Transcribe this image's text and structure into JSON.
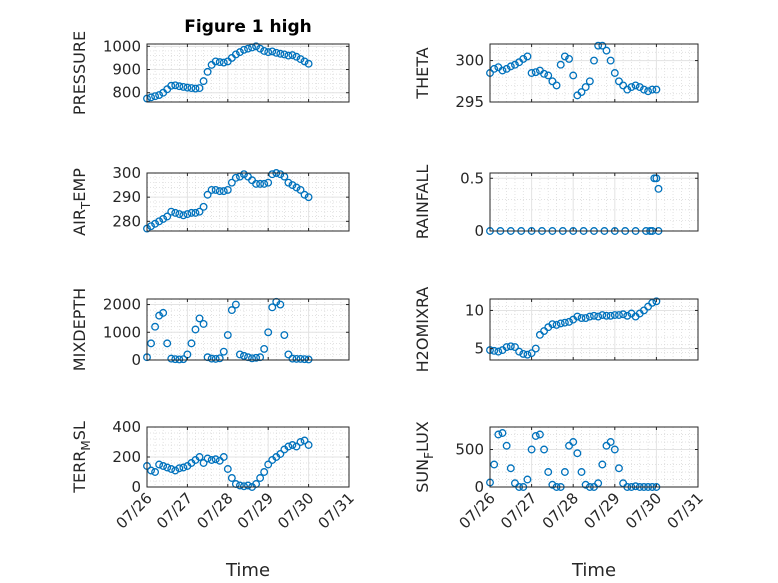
{
  "figure": {
    "title": "Figure 1 high",
    "xlabel": "Time"
  },
  "chart_data": [
    {
      "type": "scatter",
      "id": "pressure",
      "title": "Figure 1 high",
      "ylabel": "PRESSURE",
      "xlabel": "",
      "ylim": [
        760,
        1010
      ],
      "yticks": [
        800,
        900,
        1000
      ],
      "xlim": [
        0,
        5
      ],
      "xticks": [
        "07/26",
        "07/27",
        "07/28",
        "07/29",
        "07/30",
        "07/31"
      ],
      "show_xticklabels": false,
      "grid": true,
      "color": "#0072BD",
      "series": [
        {
          "x": [
            0,
            0.1,
            0.2,
            0.3,
            0.4,
            0.5,
            0.6,
            0.7,
            0.8,
            0.9,
            1,
            1.1,
            1.2,
            1.3,
            1.4,
            1.5,
            1.6,
            1.7,
            1.8,
            1.9,
            2,
            2.1,
            2.2,
            2.3,
            2.4,
            2.5,
            2.6,
            2.7,
            2.8,
            2.9,
            3,
            3.1,
            3.2,
            3.3,
            3.4,
            3.5,
            3.6,
            3.7,
            3.8,
            3.9,
            4
          ],
          "y": [
            775,
            780,
            785,
            790,
            800,
            815,
            830,
            832,
            828,
            825,
            822,
            820,
            818,
            820,
            850,
            890,
            920,
            935,
            932,
            930,
            935,
            950,
            965,
            975,
            985,
            990,
            995,
            1000,
            990,
            980,
            975,
            978,
            972,
            968,
            965,
            960,
            962,
            955,
            945,
            935,
            925
          ]
        }
      ]
    },
    {
      "type": "scatter",
      "id": "theta",
      "ylabel": "THETA",
      "xlabel": "",
      "ylim": [
        295,
        302
      ],
      "yticks": [
        295,
        300
      ],
      "xlim": [
        0,
        5
      ],
      "xticks": [
        "07/26",
        "07/27",
        "07/28",
        "07/29",
        "07/30",
        "07/31"
      ],
      "show_xticklabels": false,
      "grid": true,
      "color": "#0072BD",
      "series": [
        {
          "x": [
            0,
            0.1,
            0.2,
            0.3,
            0.4,
            0.5,
            0.6,
            0.7,
            0.8,
            0.9,
            1,
            1.1,
            1.2,
            1.3,
            1.4,
            1.5,
            1.6,
            1.7,
            1.8,
            1.9,
            2,
            2.1,
            2.2,
            2.3,
            2.4,
            2.5,
            2.6,
            2.7,
            2.8,
            2.9,
            3,
            3.1,
            3.2,
            3.3,
            3.4,
            3.5,
            3.6,
            3.7,
            3.8,
            3.9,
            4
          ],
          "y": [
            298.5,
            299,
            299.2,
            298.8,
            299,
            299.3,
            299.5,
            299.8,
            300.2,
            300.5,
            298.5,
            298.6,
            298.8,
            298.4,
            298.2,
            297.5,
            297,
            299.5,
            300.5,
            300.2,
            298.2,
            295.8,
            296.2,
            296.8,
            297.5,
            300,
            301.8,
            301.8,
            301.2,
            300,
            298.5,
            297.5,
            297,
            296.5,
            296.8,
            297,
            296.8,
            296.5,
            296.3,
            296.5,
            296.5
          ]
        }
      ]
    },
    {
      "type": "scatter",
      "id": "air_temp",
      "ylabel": "AIR_TEMP",
      "xlabel": "",
      "ylim": [
        276,
        300
      ],
      "yticks": [
        280,
        290,
        300
      ],
      "xlim": [
        0,
        5
      ],
      "xticks": [
        "07/26",
        "07/27",
        "07/28",
        "07/29",
        "07/30",
        "07/31"
      ],
      "show_xticklabels": false,
      "grid": true,
      "color": "#0072BD",
      "series": [
        {
          "x": [
            0,
            0.1,
            0.2,
            0.3,
            0.4,
            0.5,
            0.6,
            0.7,
            0.8,
            0.9,
            1,
            1.1,
            1.2,
            1.3,
            1.4,
            1.5,
            1.6,
            1.7,
            1.8,
            1.9,
            2,
            2.1,
            2.2,
            2.3,
            2.4,
            2.5,
            2.6,
            2.7,
            2.8,
            2.9,
            3,
            3.1,
            3.2,
            3.3,
            3.4,
            3.5,
            3.6,
            3.7,
            3.8,
            3.9,
            4
          ],
          "y": [
            277,
            278,
            279,
            280,
            281,
            282,
            284,
            283.5,
            283,
            282.5,
            283,
            283.5,
            283.5,
            284,
            286,
            291,
            293,
            293,
            292.5,
            292.5,
            293,
            296,
            298,
            298.5,
            299.5,
            298.5,
            297,
            295.5,
            295.5,
            295.5,
            296,
            299.5,
            300,
            299.5,
            298.5,
            296,
            295,
            294,
            293,
            291,
            290
          ]
        }
      ]
    },
    {
      "type": "scatter",
      "id": "rainfall",
      "ylabel": "RAINFALL",
      "xlabel": "",
      "ylim": [
        0,
        0.55
      ],
      "yticks": [
        0,
        0.5
      ],
      "xlim": [
        0,
        5
      ],
      "xticks": [
        "07/26",
        "07/27",
        "07/28",
        "07/29",
        "07/30",
        "07/31"
      ],
      "show_xticklabels": false,
      "grid": true,
      "color": "#0072BD",
      "series": [
        {
          "x": [
            0,
            0.25,
            0.5,
            0.75,
            1,
            1.25,
            1.5,
            1.75,
            2,
            2.25,
            2.5,
            2.75,
            3,
            3.25,
            3.5,
            3.75,
            3.85,
            3.9,
            3.95,
            4.0,
            4.05,
            4.05
          ],
          "y": [
            0,
            0,
            0,
            0,
            0,
            0,
            0,
            0,
            0,
            0,
            0,
            0,
            0,
            0,
            0,
            0,
            0,
            0,
            0.5,
            0.5,
            0.4,
            0
          ]
        }
      ]
    },
    {
      "type": "scatter",
      "id": "mixdepth",
      "ylabel": "MIXDEPTH",
      "xlabel": "",
      "ylim": [
        0,
        2200
      ],
      "yticks": [
        0,
        1000,
        2000
      ],
      "xlim": [
        0,
        5
      ],
      "xticks": [
        "07/26",
        "07/27",
        "07/28",
        "07/29",
        "07/30",
        "07/31"
      ],
      "show_xticklabels": false,
      "grid": true,
      "color": "#0072BD",
      "series": [
        {
          "x": [
            0,
            0.1,
            0.2,
            0.3,
            0.4,
            0.5,
            0.6,
            0.7,
            0.8,
            0.9,
            1,
            1.1,
            1.2,
            1.3,
            1.4,
            1.5,
            1.6,
            1.7,
            1.8,
            1.9,
            2,
            2.1,
            2.2,
            2.3,
            2.4,
            2.5,
            2.6,
            2.7,
            2.8,
            2.9,
            3,
            3.1,
            3.2,
            3.3,
            3.4,
            3.5,
            3.6,
            3.7,
            3.8,
            3.9,
            4
          ],
          "y": [
            100,
            600,
            1200,
            1600,
            1700,
            600,
            50,
            30,
            20,
            30,
            200,
            600,
            1100,
            1500,
            1300,
            100,
            50,
            40,
            60,
            300,
            900,
            1800,
            2000,
            200,
            150,
            100,
            60,
            80,
            100,
            400,
            1000,
            1900,
            2100,
            2000,
            900,
            200,
            50,
            40,
            40,
            30,
            20
          ]
        }
      ]
    },
    {
      "type": "scatter",
      "id": "h2omixra",
      "ylabel": "H2OMIXRA",
      "xlabel": "",
      "ylim": [
        3.5,
        11.5
      ],
      "yticks": [
        5,
        10
      ],
      "xlim": [
        0,
        5
      ],
      "xticks": [
        "07/26",
        "07/27",
        "07/28",
        "07/29",
        "07/30",
        "07/31"
      ],
      "show_xticklabels": false,
      "grid": true,
      "color": "#0072BD",
      "series": [
        {
          "x": [
            0,
            0.1,
            0.2,
            0.3,
            0.4,
            0.5,
            0.6,
            0.7,
            0.8,
            0.9,
            1,
            1.1,
            1.2,
            1.3,
            1.4,
            1.5,
            1.6,
            1.7,
            1.8,
            1.9,
            2,
            2.1,
            2.2,
            2.3,
            2.4,
            2.5,
            2.6,
            2.7,
            2.8,
            2.9,
            3,
            3.1,
            3.2,
            3.3,
            3.4,
            3.5,
            3.6,
            3.7,
            3.8,
            3.9,
            4
          ],
          "y": [
            4.8,
            4.7,
            4.6,
            4.8,
            5.2,
            5.3,
            5.2,
            4.6,
            4.3,
            4.2,
            4.4,
            5,
            6.8,
            7.3,
            7.8,
            8.2,
            8.1,
            8.3,
            8.4,
            8.5,
            8.8,
            9.2,
            9,
            9,
            9.2,
            9.3,
            9.2,
            9.4,
            9.3,
            9.3,
            9.4,
            9.4,
            9.5,
            9.3,
            9.6,
            9.2,
            9.6,
            10,
            10.5,
            11,
            11.2
          ]
        }
      ]
    },
    {
      "type": "scatter",
      "id": "terr_msl",
      "ylabel": "TERR_MSL",
      "xlabel": "Time",
      "ylim": [
        0,
        400
      ],
      "yticks": [
        0,
        200,
        400
      ],
      "xlim": [
        0,
        5
      ],
      "xticks": [
        "07/26",
        "07/27",
        "07/28",
        "07/29",
        "07/30",
        "07/31"
      ],
      "show_xticklabels": true,
      "grid": true,
      "color": "#0072BD",
      "series": [
        {
          "x": [
            0,
            0.1,
            0.2,
            0.3,
            0.4,
            0.5,
            0.6,
            0.7,
            0.8,
            0.9,
            1,
            1.1,
            1.2,
            1.3,
            1.4,
            1.5,
            1.6,
            1.7,
            1.8,
            1.9,
            2,
            2.1,
            2.2,
            2.3,
            2.4,
            2.5,
            2.6,
            2.7,
            2.8,
            2.9,
            3,
            3.1,
            3.2,
            3.3,
            3.4,
            3.5,
            3.6,
            3.7,
            3.8,
            3.9,
            4
          ],
          "y": [
            140,
            110,
            100,
            150,
            140,
            130,
            120,
            110,
            125,
            130,
            140,
            160,
            180,
            200,
            160,
            190,
            180,
            185,
            175,
            200,
            120,
            60,
            20,
            10,
            5,
            10,
            0,
            20,
            60,
            100,
            150,
            180,
            200,
            220,
            250,
            270,
            280,
            270,
            300,
            310,
            280
          ]
        }
      ]
    },
    {
      "type": "scatter",
      "id": "sun_flux",
      "ylabel": "SUN_FLUX",
      "xlabel": "Time",
      "ylim": [
        0,
        800
      ],
      "yticks": [
        0,
        500
      ],
      "xlim": [
        0,
        5
      ],
      "xticks": [
        "07/26",
        "07/27",
        "07/28",
        "07/29",
        "07/30",
        "07/31"
      ],
      "show_xticklabels": true,
      "grid": true,
      "color": "#0072BD",
      "series": [
        {
          "x": [
            0,
            0.1,
            0.2,
            0.3,
            0.4,
            0.5,
            0.6,
            0.7,
            0.8,
            0.9,
            1,
            1.1,
            1.2,
            1.3,
            1.4,
            1.5,
            1.6,
            1.7,
            1.8,
            1.9,
            2,
            2.1,
            2.2,
            2.3,
            2.4,
            2.5,
            2.6,
            2.7,
            2.8,
            2.9,
            3,
            3.1,
            3.2,
            3.3,
            3.4,
            3.5,
            3.6,
            3.7,
            3.8,
            3.9,
            4
          ],
          "y": [
            60,
            300,
            700,
            720,
            550,
            250,
            50,
            0,
            0,
            100,
            500,
            680,
            700,
            500,
            200,
            30,
            0,
            0,
            200,
            550,
            600,
            450,
            200,
            30,
            0,
            0,
            50,
            300,
            550,
            600,
            500,
            250,
            50,
            0,
            0,
            10,
            0,
            0,
            0,
            0,
            0
          ]
        }
      ]
    }
  ]
}
